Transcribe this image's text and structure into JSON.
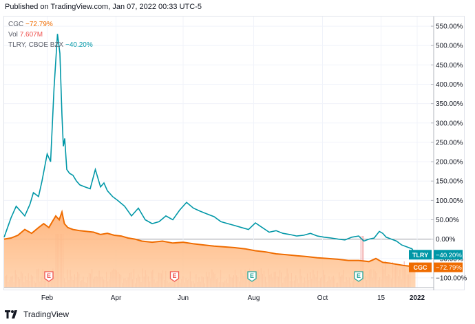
{
  "header": {
    "published": "Published on TradingView.com, Jan 07, 2022 00:33 UTC-5"
  },
  "legend": {
    "cgc": {
      "symbol": "CGC",
      "value": "−72.79%",
      "color": "#ef6c00"
    },
    "vol": {
      "symbol": "Vol",
      "value": "7.607M",
      "color": "#ef5350"
    },
    "tlry": {
      "symbol": "TLRY, CBOE BZX",
      "value": "−40.20%",
      "color": "#0097a7"
    }
  },
  "footer": {
    "brand": "TradingView",
    "logo_icon": "tradingview-logo-icon"
  },
  "chart_data": {
    "type": "line",
    "title": "",
    "x_labels": [
      "Feb",
      "Apr",
      "Jun",
      "Aug",
      "Oct",
      "15",
      "2022"
    ],
    "x_label_months": [
      1.25,
      3.25,
      5.2,
      7.25,
      9.25,
      10.95,
      12.0
    ],
    "xlim_months": [
      0,
      12.4
    ],
    "y_ticks": [
      "550.00%",
      "500.00%",
      "450.00%",
      "400.00%",
      "350.00%",
      "300.00%",
      "250.00%",
      "200.00%",
      "150.00%",
      "100.00%",
      "50.00%",
      "0.00%",
      "−50.00%",
      "−100.00%"
    ],
    "y_tick_values": [
      550,
      500,
      450,
      400,
      350,
      300,
      250,
      200,
      150,
      100,
      50,
      0,
      -50,
      -100
    ],
    "ylim": [
      -125,
      575
    ],
    "series": [
      {
        "name": "TLRY",
        "badge": "TLRY",
        "last_label": "−40.20%",
        "last_value": -40.2,
        "color": "#0097a7",
        "x": [
          0,
          0.1,
          0.2,
          0.35,
          0.5,
          0.6,
          0.75,
          0.85,
          1.0,
          1.1,
          1.25,
          1.35,
          1.45,
          1.55,
          1.62,
          1.68,
          1.72,
          1.76,
          1.82,
          1.9,
          2.0,
          2.1,
          2.2,
          2.35,
          2.5,
          2.65,
          2.8,
          2.9,
          3.0,
          3.15,
          3.3,
          3.5,
          3.7,
          3.9,
          4.1,
          4.3,
          4.5,
          4.7,
          4.9,
          5.1,
          5.3,
          5.5,
          5.7,
          5.9,
          6.1,
          6.3,
          6.5,
          6.7,
          6.9,
          7.1,
          7.3,
          7.5,
          7.7,
          7.9,
          8.1,
          8.3,
          8.5,
          8.7,
          8.9,
          9.1,
          9.3,
          9.5,
          9.7,
          9.9,
          10.1,
          10.3,
          10.45,
          10.6,
          10.75,
          10.9,
          11.0,
          11.1,
          11.25,
          11.4,
          11.55,
          11.7,
          11.85,
          11.95
        ],
        "values": [
          5,
          30,
          55,
          85,
          70,
          60,
          90,
          120,
          110,
          150,
          220,
          200,
          390,
          530,
          480,
          320,
          240,
          260,
          180,
          170,
          165,
          150,
          140,
          135,
          130,
          180,
          135,
          145,
          125,
          110,
          100,
          85,
          60,
          80,
          50,
          40,
          45,
          60,
          50,
          75,
          95,
          80,
          72,
          65,
          58,
          45,
          40,
          35,
          30,
          25,
          42,
          30,
          18,
          22,
          15,
          12,
          8,
          10,
          15,
          8,
          5,
          3,
          0,
          -2,
          5,
          8,
          -5,
          0,
          3,
          20,
          15,
          5,
          0,
          -5,
          -15,
          -20,
          -25,
          -40.2
        ]
      },
      {
        "name": "CGC",
        "badge": "CGC",
        "last_label": "−72.79%",
        "last_value": -72.79,
        "color": "#ef6c00",
        "x": [
          0,
          0.2,
          0.4,
          0.6,
          0.8,
          1.0,
          1.15,
          1.3,
          1.4,
          1.5,
          1.6,
          1.68,
          1.75,
          1.85,
          2.0,
          2.2,
          2.4,
          2.6,
          2.8,
          3.0,
          3.2,
          3.4,
          3.6,
          3.8,
          4.0,
          4.3,
          4.6,
          4.9,
          5.2,
          5.5,
          5.8,
          6.1,
          6.4,
          6.7,
          7.0,
          7.3,
          7.6,
          7.9,
          8.2,
          8.5,
          8.8,
          9.1,
          9.4,
          9.7,
          10.0,
          10.3,
          10.6,
          10.8,
          11.0,
          11.2,
          11.4,
          11.6,
          11.8,
          11.95
        ],
        "values": [
          0,
          3,
          10,
          25,
          15,
          30,
          40,
          30,
          45,
          60,
          50,
          70,
          40,
          30,
          25,
          22,
          20,
          18,
          12,
          15,
          10,
          8,
          3,
          0,
          -5,
          -8,
          -5,
          -10,
          -8,
          -12,
          -15,
          -18,
          -20,
          -22,
          -25,
          -30,
          -33,
          -38,
          -40,
          -43,
          -45,
          -48,
          -50,
          -52,
          -55,
          -55,
          -58,
          -50,
          -60,
          -62,
          -65,
          -68,
          -70,
          -72.79
        ]
      }
    ],
    "volume": {
      "name": "Vol",
      "value_label": "7.607M",
      "color": "#ef5350",
      "y_domain": [
        0,
        100
      ]
    },
    "events": [
      {
        "label": "E",
        "x": 1.3,
        "color": "#ef5350"
      },
      {
        "label": "E",
        "x": 4.95,
        "color": "#ef5350"
      },
      {
        "label": "E",
        "x": 7.2,
        "color": "#26a69a"
      },
      {
        "label": "E",
        "x": 10.3,
        "color": "#26a69a"
      }
    ],
    "zero_line": 0,
    "grid": true,
    "legend": "top-left"
  }
}
